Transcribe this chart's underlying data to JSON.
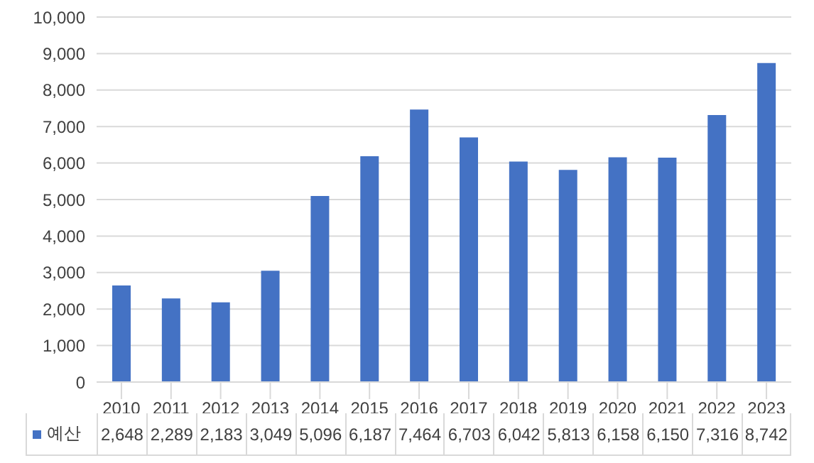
{
  "chart_data": {
    "type": "bar",
    "categories": [
      "2010",
      "2011",
      "2012",
      "2013",
      "2014",
      "2015",
      "2016",
      "2017",
      "2018",
      "2019",
      "2020",
      "2021",
      "2022",
      "2023"
    ],
    "series": [
      {
        "name": "예산",
        "color": "#4472c4",
        "values": [
          2648,
          2289,
          2183,
          3049,
          5096,
          6187,
          7464,
          6703,
          6042,
          5813,
          6158,
          6150,
          7316,
          8742
        ],
        "value_labels": [
          "2,648",
          "2,289",
          "2,183",
          "3,049",
          "5,096",
          "6,187",
          "7,464",
          "6,703",
          "6,042",
          "5,813",
          "6,158",
          "6,150",
          "7,316",
          "8,742"
        ]
      }
    ],
    "ylim": [
      0,
      10000
    ],
    "yticks": [
      0,
      {
        "value": 1000,
        "label": "1,000"
      },
      {
        "value": 2000,
        "label": "2,000"
      },
      {
        "value": 3000,
        "label": "3,000"
      },
      {
        "value": 4000,
        "label": "4,000"
      },
      {
        "value": 5000,
        "label": "5,000"
      },
      {
        "value": 6000,
        "label": "6,000"
      },
      {
        "value": 7000,
        "label": "7,000"
      },
      {
        "value": 8000,
        "label": "8,000"
      },
      {
        "value": 9000,
        "label": "9,000"
      },
      {
        "value": 10000,
        "label": "10,000"
      }
    ],
    "grid": "y",
    "legend": "bottom"
  }
}
